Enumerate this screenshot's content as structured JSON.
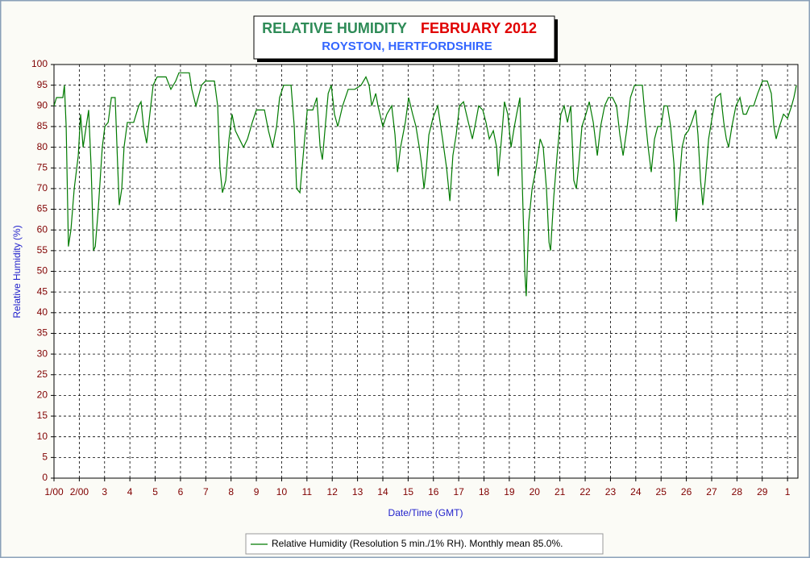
{
  "chart_data": {
    "type": "line",
    "title": "RELATIVE HUMIDITY",
    "title_date": "FEBRUARY 2012",
    "subtitle": "ROYSTON, HERTFORDSHIRE",
    "xlabel": "Date/Time (GMT)",
    "ylabel": "Relative Humidity (%)",
    "xlim": [
      1,
      30.41
    ],
    "ylim": [
      0,
      100
    ],
    "xticks": [
      {
        "value": 1,
        "label": "1/00"
      },
      {
        "value": 2,
        "label": "2/00"
      },
      3,
      4,
      5,
      6,
      7,
      8,
      9,
      10,
      11,
      12,
      13,
      14,
      15,
      16,
      17,
      18,
      19,
      20,
      21,
      22,
      23,
      24,
      25,
      26,
      27,
      28,
      29,
      {
        "value": 30,
        "label": "1"
      }
    ],
    "yticks": [
      0,
      5,
      10,
      15,
      20,
      25,
      30,
      35,
      40,
      45,
      50,
      55,
      60,
      65,
      70,
      75,
      80,
      85,
      90,
      95,
      100
    ],
    "grid": true,
    "series": [
      {
        "name": "Relative Humidity (Resolution 5 min./1% RH). Monthly mean 85.0%.",
        "color": "#007a00",
        "x": [
          1.0,
          1.1,
          1.35,
          1.41,
          1.48,
          1.57,
          1.67,
          1.8,
          1.96,
          2.05,
          2.15,
          2.27,
          2.37,
          2.47,
          2.56,
          2.63,
          2.75,
          2.91,
          3.01,
          3.14,
          3.27,
          3.42,
          3.52,
          3.58,
          3.68,
          3.77,
          3.9,
          4.15,
          4.35,
          4.44,
          4.54,
          4.66,
          4.79,
          4.92,
          5.08,
          5.43,
          5.62,
          5.81,
          5.94,
          6.35,
          6.45,
          6.61,
          6.83,
          6.99,
          7.34,
          7.47,
          7.56,
          7.66,
          7.79,
          7.92,
          8.04,
          8.17,
          8.33,
          8.49,
          8.65,
          8.84,
          9.0,
          9.32,
          9.48,
          9.64,
          9.8,
          9.92,
          10.08,
          10.37,
          10.5,
          10.59,
          10.72,
          10.88,
          11.01,
          11.23,
          11.39,
          11.52,
          11.61,
          11.71,
          11.84,
          11.96,
          12.09,
          12.22,
          12.41,
          12.63,
          12.89,
          13.14,
          13.33,
          13.46,
          13.56,
          13.72,
          13.81,
          14.0,
          14.16,
          14.35,
          14.48,
          14.58,
          14.7,
          14.89,
          15.02,
          15.18,
          15.31,
          15.44,
          15.53,
          15.63,
          15.72,
          15.82,
          15.98,
          16.17,
          16.36,
          16.52,
          16.65,
          16.77,
          16.9,
          17.03,
          17.19,
          17.38,
          17.54,
          17.67,
          17.79,
          17.95,
          18.08,
          18.21,
          18.37,
          18.5,
          18.56,
          18.69,
          18.81,
          18.94,
          19.07,
          19.2,
          19.29,
          19.42,
          19.52,
          19.61,
          19.67,
          19.77,
          19.9,
          20.06,
          20.22,
          20.34,
          20.47,
          20.57,
          20.63,
          20.76,
          20.89,
          21.04,
          21.17,
          21.3,
          21.43,
          21.55,
          21.65,
          21.75,
          21.87,
          22.03,
          22.16,
          22.32,
          22.48,
          22.61,
          22.77,
          22.92,
          23.08,
          23.24,
          23.37,
          23.5,
          23.66,
          23.79,
          23.95,
          24.26,
          24.36,
          24.49,
          24.61,
          24.74,
          24.87,
          25.0,
          25.12,
          25.25,
          25.38,
          25.51,
          25.6,
          25.73,
          25.83,
          25.95,
          26.08,
          26.21,
          26.37,
          26.46,
          26.56,
          26.65,
          26.75,
          26.88,
          27.04,
          27.16,
          27.35,
          27.48,
          27.58,
          27.67,
          27.8,
          27.96,
          28.12,
          28.25,
          28.37,
          28.5,
          28.66,
          28.82,
          29.01,
          29.2,
          29.36,
          29.46,
          29.55,
          29.68,
          29.84,
          30.0,
          30.16,
          30.25,
          30.35
        ],
        "values": [
          90,
          92,
          92,
          95,
          85,
          56,
          60,
          70,
          78,
          88,
          80,
          85,
          89,
          75,
          55,
          56,
          65,
          80,
          85,
          86,
          92,
          92,
          75,
          66,
          70,
          80,
          86,
          86,
          90,
          91,
          85,
          81,
          88,
          95,
          97,
          97,
          94,
          96,
          98,
          98,
          94,
          90,
          95,
          96,
          96,
          90,
          75,
          69,
          72,
          82,
          88,
          84,
          82,
          80,
          82,
          86,
          89,
          89,
          84,
          80,
          85,
          92,
          95,
          95,
          85,
          70,
          69,
          80,
          89,
          89,
          92,
          80,
          77,
          84,
          93,
          95,
          88,
          85,
          90,
          94,
          94,
          95,
          97,
          95,
          90,
          93,
          90,
          85,
          88,
          90,
          83,
          74,
          80,
          86,
          92,
          88,
          85,
          80,
          76,
          70,
          75,
          83,
          87,
          90,
          82,
          75,
          67,
          78,
          83,
          90,
          91,
          86,
          82,
          86,
          90,
          89,
          86,
          82,
          84,
          80,
          73,
          82,
          91,
          88,
          80,
          85,
          88,
          92,
          70,
          50,
          44,
          62,
          70,
          75,
          82,
          80,
          70,
          57,
          55,
          68,
          78,
          88,
          90,
          86,
          90,
          72,
          70,
          76,
          85,
          88,
          91,
          86,
          78,
          85,
          90,
          92,
          92,
          90,
          83,
          78,
          85,
          92,
          95,
          95,
          88,
          80,
          74,
          82,
          85,
          85,
          90,
          90,
          85,
          76,
          62,
          72,
          80,
          83,
          84,
          86,
          89,
          83,
          72,
          66,
          72,
          82,
          88,
          92,
          93,
          86,
          82,
          80,
          85,
          90,
          92,
          88,
          88,
          90,
          90,
          93,
          96,
          96,
          93,
          85,
          82,
          85,
          88,
          87,
          90,
          92,
          95
        ]
      }
    ]
  }
}
